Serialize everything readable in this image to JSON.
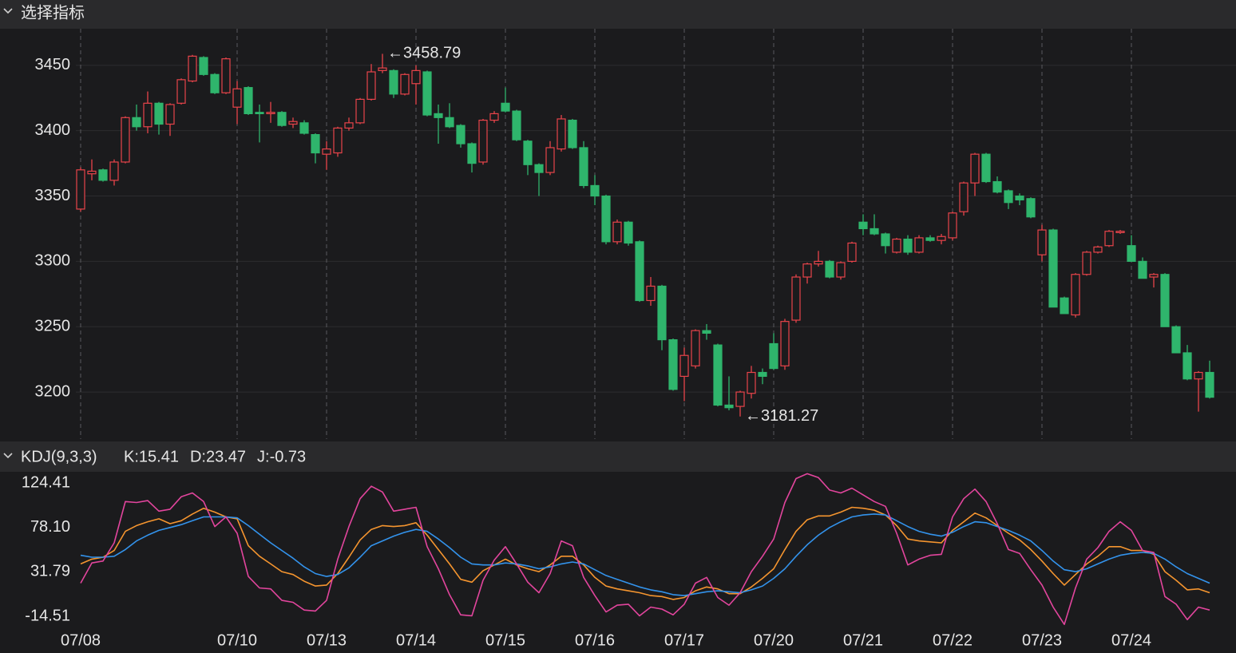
{
  "header": {
    "title": "选择指标"
  },
  "chart_data": [
    {
      "type": "candlestick",
      "up_color": "#e8444a",
      "down_color": "#2fb56c",
      "ylim": [
        3164,
        3478
      ],
      "yticks": [
        3200,
        3250,
        3300,
        3350,
        3400,
        3450
      ],
      "grid": true,
      "max_label": "←3458.79",
      "min_label": "←3181.27",
      "categories": [
        "07/08",
        null,
        null,
        null,
        null,
        null,
        null,
        null,
        null,
        null,
        null,
        null,
        null,
        null,
        "07/10",
        null,
        null,
        null,
        null,
        null,
        null,
        null,
        "07/13",
        null,
        null,
        null,
        null,
        null,
        null,
        null,
        "07/14",
        null,
        null,
        null,
        null,
        null,
        null,
        null,
        "07/15",
        null,
        null,
        null,
        null,
        null,
        null,
        null,
        "07/16",
        null,
        null,
        null,
        null,
        null,
        null,
        null,
        "07/17",
        null,
        null,
        null,
        null,
        null,
        null,
        null,
        "07/20",
        null,
        null,
        null,
        null,
        null,
        null,
        null,
        "07/21",
        null,
        null,
        null,
        null,
        null,
        null,
        null,
        "07/22",
        null,
        null,
        null,
        null,
        null,
        null,
        null,
        "07/23",
        null,
        null,
        null,
        null,
        null,
        null,
        null,
        "07/24",
        null,
        null,
        null,
        null,
        null,
        null,
        null
      ],
      "open": [
        3340,
        3367,
        3370,
        3362,
        3376,
        3410,
        3403,
        3421,
        3405,
        3421,
        3438,
        3456,
        3443,
        3429,
        3418,
        3433,
        3414,
        3413,
        3414,
        3405,
        3406,
        3397,
        3382,
        3383,
        3402,
        3406,
        3424,
        3446,
        3446,
        3428,
        3436,
        3445,
        3413,
        3410,
        3404,
        3390,
        3376,
        3408,
        3421,
        3415,
        3392,
        3374,
        3368,
        3386,
        3408,
        3387,
        3358,
        3350,
        3315,
        3330,
        3315,
        3270,
        3281,
        3240,
        3212,
        3220,
        3247,
        3236,
        3190,
        3189,
        3199,
        3215,
        3237,
        3220,
        3255,
        3288,
        3298,
        3300,
        3288,
        3300,
        3330,
        3325,
        3321,
        3307,
        3317,
        3307,
        3318,
        3316,
        3318,
        3338,
        3360,
        3382,
        3361,
        3354,
        3350,
        3348,
        3305,
        3324,
        3272,
        3259,
        3290,
        3307,
        3312,
        3322,
        3312,
        3300,
        3288,
        3290,
        3250,
        3230,
        3210,
        3215
      ],
      "high": [
        3372,
        3378,
        3371,
        3378,
        3411,
        3420,
        3430,
        3422,
        3421,
        3440,
        3458,
        3457,
        3444,
        3456,
        3438,
        3434,
        3420,
        3422,
        3415,
        3410,
        3408,
        3398,
        3392,
        3403,
        3410,
        3425,
        3451,
        3458.79,
        3447,
        3444,
        3450,
        3446,
        3420,
        3421,
        3405,
        3391,
        3409,
        3415,
        3433,
        3416,
        3393,
        3375,
        3392,
        3412,
        3409,
        3392,
        3366,
        3351,
        3332,
        3331,
        3316,
        3288,
        3282,
        3241,
        3234,
        3248,
        3252,
        3237,
        3212,
        3201,
        3220,
        3218,
        3245,
        3256,
        3290,
        3299,
        3308,
        3301,
        3300,
        3315,
        3336,
        3336,
        3322,
        3318,
        3320,
        3320,
        3320,
        3321,
        3338,
        3361,
        3383,
        3383,
        3365,
        3355,
        3352,
        3349,
        3328,
        3325,
        3273,
        3291,
        3308,
        3312,
        3324,
        3324,
        3320,
        3303,
        3291,
        3291,
        3251,
        3236,
        3216,
        3224
      ],
      "low": [
        3338,
        3362,
        3361,
        3358,
        3375,
        3400,
        3398,
        3397,
        3396,
        3420,
        3437,
        3442,
        3428,
        3428,
        3405,
        3412,
        3391,
        3406,
        3403,
        3402,
        3397,
        3375,
        3370,
        3380,
        3400,
        3405,
        3423,
        3444,
        3425,
        3427,
        3420,
        3411,
        3390,
        3402,
        3387,
        3368,
        3374,
        3406,
        3414,
        3392,
        3366,
        3350,
        3366,
        3384,
        3386,
        3356,
        3343,
        3313,
        3313,
        3312,
        3269,
        3266,
        3232,
        3201,
        3193,
        3218,
        3240,
        3189,
        3186,
        3181.27,
        3195,
        3206,
        3217,
        3217,
        3253,
        3283,
        3296,
        3287,
        3286,
        3299,
        3320,
        3320,
        3306,
        3306,
        3305,
        3306,
        3315,
        3313,
        3316,
        3335,
        3350,
        3360,
        3352,
        3340,
        3343,
        3333,
        3300,
        3265,
        3260,
        3257,
        3289,
        3306,
        3311,
        3321,
        3300,
        3287,
        3280,
        3250,
        3230,
        3209,
        3185,
        3195
      ],
      "close": [
        3370,
        3369,
        3362,
        3376,
        3410,
        3403,
        3421,
        3405,
        3420,
        3439,
        3457,
        3443,
        3429,
        3455,
        3432,
        3413,
        3413,
        3414,
        3404,
        3407,
        3398,
        3383,
        3386,
        3402,
        3406,
        3424,
        3445,
        3448,
        3428,
        3443,
        3446,
        3412,
        3410,
        3403,
        3390,
        3375,
        3408,
        3413,
        3415,
        3393,
        3374,
        3368,
        3387,
        3409,
        3387,
        3358,
        3350,
        3315,
        3330,
        3314,
        3270,
        3281,
        3240,
        3202,
        3228,
        3247,
        3245,
        3190,
        3188,
        3200,
        3215,
        3212,
        3218,
        3254,
        3288,
        3298,
        3300,
        3288,
        3299,
        3314,
        3325,
        3321,
        3312,
        3317,
        3307,
        3318,
        3316,
        3319,
        3337,
        3360,
        3382,
        3361,
        3353,
        3345,
        3347,
        3334,
        3324,
        3265,
        3260,
        3290,
        3307,
        3311,
        3323,
        3323,
        3300,
        3287,
        3290,
        3250,
        3230,
        3210,
        3215,
        3196
      ]
    },
    {
      "type": "line",
      "title": "KDJ(9,3,3)",
      "ylim": [
        -29.5,
        135.2
      ],
      "yticks": [
        {
          "value": -14.51,
          "label": "-14.51"
        },
        {
          "value": 31.79,
          "label": "31.79"
        },
        {
          "value": 78.1,
          "label": "78.10"
        },
        {
          "value": 124.41,
          "label": "124.41"
        }
      ],
      "series": [
        {
          "name": "K:15.41",
          "color": "#f5952f",
          "values": [
            40,
            45,
            47,
            54,
            74,
            80,
            84,
            87,
            82,
            85,
            92,
            98,
            94,
            89,
            87,
            59,
            48,
            40,
            32,
            29,
            22,
            17,
            18,
            30,
            47,
            65,
            76,
            80,
            79,
            80,
            83,
            70,
            55,
            40,
            24,
            21,
            33,
            39,
            45,
            39,
            35,
            32,
            39,
            48,
            48,
            39,
            26,
            17,
            14,
            12,
            10,
            7,
            6,
            3,
            5,
            12,
            16,
            14,
            9,
            9,
            16,
            25,
            35,
            55,
            74,
            86,
            90,
            90,
            94,
            99,
            98,
            96,
            91,
            80,
            66,
            64,
            63,
            62,
            75,
            84,
            93,
            88,
            80,
            72,
            65,
            55,
            43,
            30,
            18,
            29,
            40,
            48,
            58,
            58,
            54,
            54,
            50,
            32,
            23,
            13,
            14,
            10
          ]
        },
        {
          "name": "D:23.47",
          "color": "#3393ec",
          "values": [
            49,
            47,
            47,
            48,
            55,
            64,
            70,
            75,
            78,
            81,
            85,
            89,
            89,
            89,
            88,
            80,
            71,
            62,
            54,
            46,
            37,
            30,
            27,
            29,
            36,
            47,
            59,
            64,
            69,
            73,
            76,
            74,
            66,
            57,
            47,
            40,
            39,
            39,
            41,
            40,
            38,
            35,
            37,
            40,
            42,
            40,
            34,
            28,
            24,
            20,
            16,
            13,
            11,
            8,
            7,
            9,
            11,
            12,
            11,
            10,
            13,
            17,
            25,
            35,
            48,
            60,
            70,
            78,
            84,
            89,
            91,
            92,
            91,
            85,
            79,
            74,
            71,
            69,
            73,
            79,
            84,
            83,
            79,
            75,
            70,
            64,
            54,
            43,
            34,
            32,
            35,
            40,
            45,
            49,
            51,
            52,
            51,
            45,
            37,
            30,
            25,
            20
          ]
        },
        {
          "name": "J:-0.73",
          "color": "#e2459d",
          "values": [
            20,
            41,
            43,
            62,
            105,
            104,
            106,
            95,
            97,
            110,
            114,
            105,
            79,
            89,
            72,
            27,
            15,
            14,
            2,
            0,
            -8,
            -9,
            2,
            45,
            79,
            108,
            121,
            115,
            95,
            97,
            99,
            58,
            35,
            8,
            -13,
            -14,
            23,
            44,
            58,
            40,
            21,
            10,
            30,
            64,
            59,
            26,
            7,
            -10,
            -3,
            -2,
            -14,
            -5,
            -7,
            -13,
            -2,
            20,
            26,
            5,
            -3,
            10,
            32,
            48,
            66,
            104,
            129,
            134,
            130,
            117,
            114,
            119,
            112,
            105,
            100,
            72,
            39,
            45,
            49,
            50,
            89,
            108,
            118,
            105,
            82,
            55,
            51,
            34,
            18,
            -5,
            -23,
            15,
            45,
            57,
            74,
            84,
            75,
            54,
            52,
            6,
            -2,
            -18,
            -5,
            -8
          ]
        }
      ]
    }
  ]
}
